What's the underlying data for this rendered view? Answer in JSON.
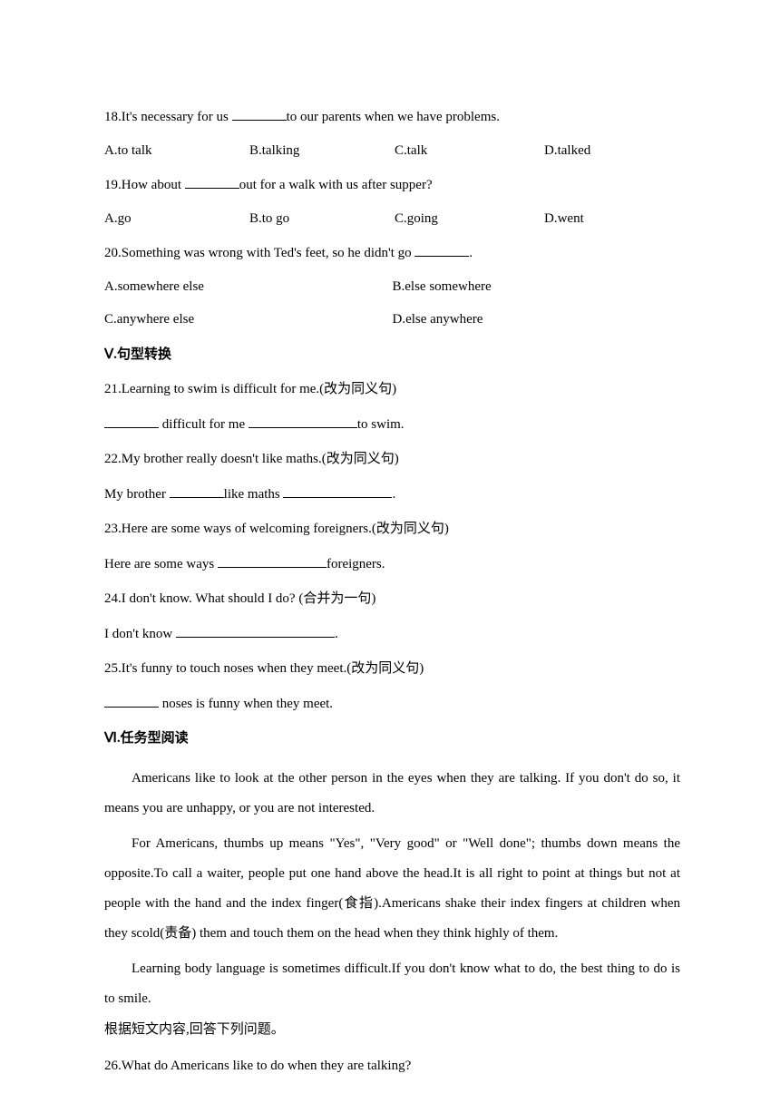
{
  "q18": {
    "text_before": "18.It's necessary for us ",
    "text_after": "to our parents when we have problems.",
    "options": {
      "a": "A.to talk",
      "b": "B.talking",
      "c": "C.talk",
      "d": "D.talked"
    }
  },
  "q19": {
    "text_before": "19.How about ",
    "text_after": "out for a walk with us after supper?",
    "options": {
      "a": "A.go",
      "b": "B.to go",
      "c": "C.going",
      "d": "D.went"
    }
  },
  "q20": {
    "text_before": "20.Something was wrong with Ted's feet, so he didn't go ",
    "text_after": ".",
    "options": {
      "a": "A.somewhere else",
      "b": "B.else somewhere",
      "c": "C.anywhere else",
      "d": "D.else anywhere"
    }
  },
  "section_v": "Ⅴ.句型转换",
  "q21": {
    "line1": "21.Learning to swim is difficult for me.(改为同义句)",
    "line2_mid": " difficult for me ",
    "line2_end": "to swim."
  },
  "q22": {
    "line1": "22.My brother really doesn't like maths.(改为同义句)",
    "line2_start": "My brother ",
    "line2_mid": "like maths ",
    "line2_end": "."
  },
  "q23": {
    "line1": "23.Here are some ways of welcoming foreigners.(改为同义句)",
    "line2_start": "Here are some ways ",
    "line2_end": "foreigners."
  },
  "q24": {
    "line1": "24.I don't know. What should I do? (合并为一句)",
    "line2_start": "I don't know ",
    "line2_end": "."
  },
  "q25": {
    "line1": "25.It's funny to touch noses when they meet.(改为同义句)",
    "line2_end": " noses is funny when they meet."
  },
  "section_vi": "Ⅵ.任务型阅读",
  "passage": {
    "p1": "Americans like to look at the other person in the eyes when they are talking. If you don't do so, it means you are unhappy, or you are not interested.",
    "p2": "For Americans, thumbs up means \"Yes\", \"Very good\" or \"Well done\"; thumbs down means the opposite.To call a waiter, people put one hand above the head.It is all right to point at things but not at people with the hand and the index finger(食指).Americans shake their index fingers at children when they scold(责备) them and touch them on the head when they think highly of them.",
    "p3": "Learning body language is sometimes difficult.If you don't know what to do, the best thing to do is to smile."
  },
  "instruction": "根据短文内容,回答下列问题。",
  "q26": "26.What do Americans like to do when they are talking?"
}
